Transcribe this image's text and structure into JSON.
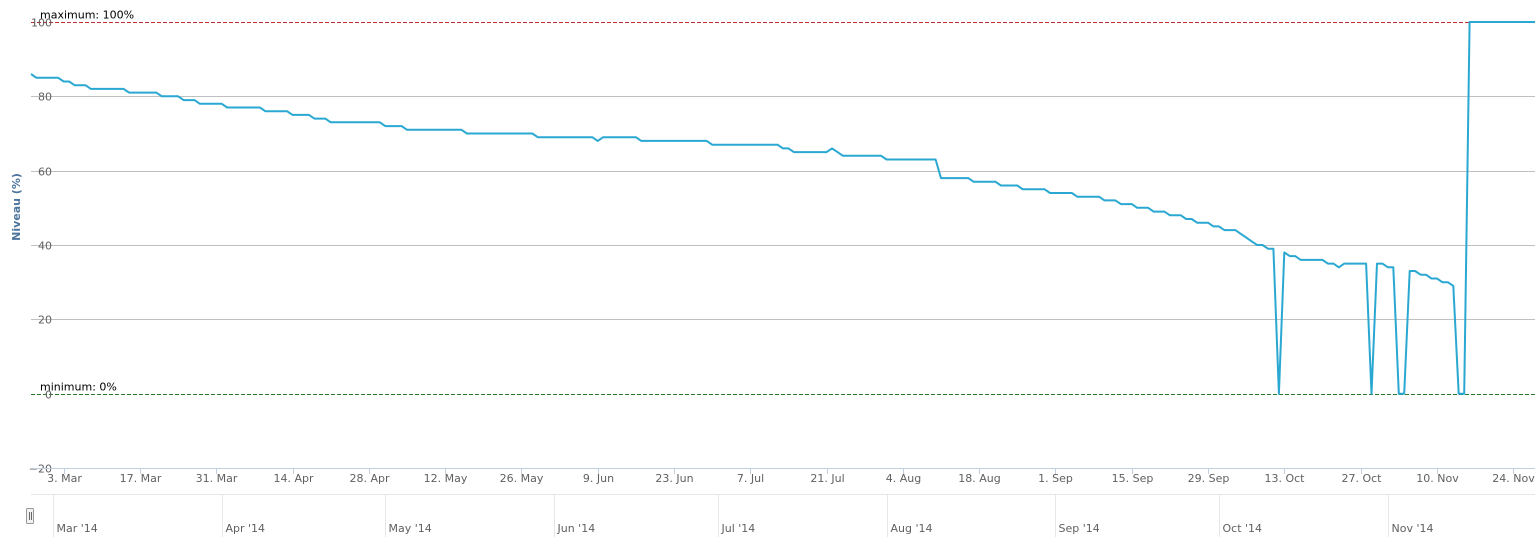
{
  "chart_data": {
    "type": "line",
    "ylabel": "Niveau (%)",
    "ylim": [
      -20,
      100
    ],
    "xlim": [
      "2014-02-25",
      "2014-11-28"
    ],
    "yticks": [
      100,
      80,
      60,
      40,
      20,
      0,
      -20
    ],
    "ytick_labels": [
      "100",
      "80",
      "60",
      "40",
      "20",
      "0",
      "−20"
    ],
    "xticks": [
      {
        "date": "2014-03-03",
        "label": "3. Mar"
      },
      {
        "date": "2014-03-17",
        "label": "17. Mar"
      },
      {
        "date": "2014-03-31",
        "label": "31. Mar"
      },
      {
        "date": "2014-04-14",
        "label": "14. Apr"
      },
      {
        "date": "2014-04-28",
        "label": "28. Apr"
      },
      {
        "date": "2014-05-12",
        "label": "12. May"
      },
      {
        "date": "2014-05-26",
        "label": "26. May"
      },
      {
        "date": "2014-06-09",
        "label": "9. Jun"
      },
      {
        "date": "2014-06-23",
        "label": "23. Jun"
      },
      {
        "date": "2014-07-07",
        "label": "7. Jul"
      },
      {
        "date": "2014-07-21",
        "label": "21. Jul"
      },
      {
        "date": "2014-08-04",
        "label": "4. Aug"
      },
      {
        "date": "2014-08-18",
        "label": "18. Aug"
      },
      {
        "date": "2014-09-01",
        "label": "1. Sep"
      },
      {
        "date": "2014-09-15",
        "label": "15. Sep"
      },
      {
        "date": "2014-09-29",
        "label": "29. Sep"
      },
      {
        "date": "2014-10-13",
        "label": "13. Oct"
      },
      {
        "date": "2014-10-27",
        "label": "27. Oct"
      },
      {
        "date": "2014-11-10",
        "label": "10. Nov"
      },
      {
        "date": "2014-11-24",
        "label": "24. Nov"
      }
    ],
    "plot_lines": [
      {
        "value": 100,
        "label": "maximum: 100%",
        "color": "#c03030"
      },
      {
        "value": 0,
        "label": "minimum: 0%",
        "color": "#2a7a2a"
      }
    ],
    "series_color": "#2aa8d2",
    "grid": true,
    "navigator": {
      "ticks": [
        {
          "date": "2014-03-01",
          "label": "Mar '14"
        },
        {
          "date": "2014-04-01",
          "label": "Apr '14"
        },
        {
          "date": "2014-05-01",
          "label": "May '14"
        },
        {
          "date": "2014-06-01",
          "label": "Jun '14"
        },
        {
          "date": "2014-07-01",
          "label": "Jul '14"
        },
        {
          "date": "2014-08-01",
          "label": "Aug '14"
        },
        {
          "date": "2014-09-01",
          "label": "Sep '14"
        },
        {
          "date": "2014-10-01",
          "label": "Oct '14"
        },
        {
          "date": "2014-11-01",
          "label": "Nov '14"
        }
      ]
    },
    "series": [
      {
        "points": [
          [
            "2014-02-25",
            86
          ],
          [
            "2014-02-26",
            85
          ],
          [
            "2014-03-02",
            85
          ],
          [
            "2014-03-03",
            84
          ],
          [
            "2014-03-04",
            84
          ],
          [
            "2014-03-05",
            83
          ],
          [
            "2014-03-07",
            83
          ],
          [
            "2014-03-08",
            82
          ],
          [
            "2014-03-14",
            82
          ],
          [
            "2014-03-15",
            81
          ],
          [
            "2014-03-20",
            81
          ],
          [
            "2014-03-21",
            80
          ],
          [
            "2014-03-24",
            80
          ],
          [
            "2014-03-25",
            79
          ],
          [
            "2014-03-27",
            79
          ],
          [
            "2014-03-28",
            78
          ],
          [
            "2014-04-01",
            78
          ],
          [
            "2014-04-02",
            77
          ],
          [
            "2014-04-08",
            77
          ],
          [
            "2014-04-09",
            76
          ],
          [
            "2014-04-13",
            76
          ],
          [
            "2014-04-14",
            75
          ],
          [
            "2014-04-17",
            75
          ],
          [
            "2014-04-18",
            74
          ],
          [
            "2014-04-20",
            74
          ],
          [
            "2014-04-21",
            73
          ],
          [
            "2014-04-30",
            73
          ],
          [
            "2014-05-01",
            72
          ],
          [
            "2014-05-04",
            72
          ],
          [
            "2014-05-05",
            71
          ],
          [
            "2014-05-15",
            71
          ],
          [
            "2014-05-16",
            70
          ],
          [
            "2014-05-28",
            70
          ],
          [
            "2014-05-29",
            69
          ],
          [
            "2014-06-08",
            69
          ],
          [
            "2014-06-09",
            68
          ],
          [
            "2014-06-10",
            69
          ],
          [
            "2014-06-16",
            69
          ],
          [
            "2014-06-17",
            68
          ],
          [
            "2014-06-29",
            68
          ],
          [
            "2014-06-30",
            67
          ],
          [
            "2014-07-12",
            67
          ],
          [
            "2014-07-13",
            66
          ],
          [
            "2014-07-14",
            66
          ],
          [
            "2014-07-15",
            65
          ],
          [
            "2014-07-21",
            65
          ],
          [
            "2014-07-22",
            66
          ],
          [
            "2014-07-23",
            65
          ],
          [
            "2014-07-24",
            64
          ],
          [
            "2014-07-31",
            64
          ],
          [
            "2014-08-01",
            63
          ],
          [
            "2014-08-10",
            63
          ],
          [
            "2014-08-11",
            58
          ],
          [
            "2014-08-16",
            58
          ],
          [
            "2014-08-17",
            57
          ],
          [
            "2014-08-21",
            57
          ],
          [
            "2014-08-22",
            56
          ],
          [
            "2014-08-25",
            56
          ],
          [
            "2014-08-26",
            55
          ],
          [
            "2014-08-30",
            55
          ],
          [
            "2014-08-31",
            54
          ],
          [
            "2014-09-04",
            54
          ],
          [
            "2014-09-05",
            53
          ],
          [
            "2014-09-09",
            53
          ],
          [
            "2014-09-10",
            52
          ],
          [
            "2014-09-12",
            52
          ],
          [
            "2014-09-13",
            51
          ],
          [
            "2014-09-15",
            51
          ],
          [
            "2014-09-16",
            50
          ],
          [
            "2014-09-18",
            50
          ],
          [
            "2014-09-19",
            49
          ],
          [
            "2014-09-21",
            49
          ],
          [
            "2014-09-22",
            48
          ],
          [
            "2014-09-24",
            48
          ],
          [
            "2014-09-25",
            47
          ],
          [
            "2014-09-26",
            47
          ],
          [
            "2014-09-27",
            46
          ],
          [
            "2014-09-29",
            46
          ],
          [
            "2014-09-30",
            45
          ],
          [
            "2014-10-01",
            45
          ],
          [
            "2014-10-02",
            44
          ],
          [
            "2014-10-04",
            44
          ],
          [
            "2014-10-05",
            43
          ],
          [
            "2014-10-06",
            42
          ],
          [
            "2014-10-07",
            41
          ],
          [
            "2014-10-08",
            40
          ],
          [
            "2014-10-09",
            40
          ],
          [
            "2014-10-10",
            39
          ],
          [
            "2014-10-11",
            39
          ],
          [
            "2014-10-12",
            0
          ],
          [
            "2014-10-13",
            38
          ],
          [
            "2014-10-14",
            37
          ],
          [
            "2014-10-15",
            37
          ],
          [
            "2014-10-16",
            36
          ],
          [
            "2014-10-20",
            36
          ],
          [
            "2014-10-21",
            35
          ],
          [
            "2014-10-22",
            35
          ],
          [
            "2014-10-23",
            34
          ],
          [
            "2014-10-24",
            35
          ],
          [
            "2014-10-28",
            35
          ],
          [
            "2014-10-29",
            0
          ],
          [
            "2014-10-30",
            35
          ],
          [
            "2014-10-31",
            35
          ],
          [
            "2014-11-01",
            34
          ],
          [
            "2014-11-02",
            34
          ],
          [
            "2014-11-03",
            0
          ],
          [
            "2014-11-04",
            0
          ],
          [
            "2014-11-05",
            33
          ],
          [
            "2014-11-06",
            33
          ],
          [
            "2014-11-07",
            32
          ],
          [
            "2014-11-08",
            32
          ],
          [
            "2014-11-09",
            31
          ],
          [
            "2014-11-10",
            31
          ],
          [
            "2014-11-11",
            30
          ],
          [
            "2014-11-12",
            30
          ],
          [
            "2014-11-13",
            29
          ],
          [
            "2014-11-14",
            0
          ],
          [
            "2014-11-15",
            0
          ],
          [
            "2014-11-16",
            100
          ],
          [
            "2014-11-28",
            100
          ]
        ]
      }
    ]
  }
}
